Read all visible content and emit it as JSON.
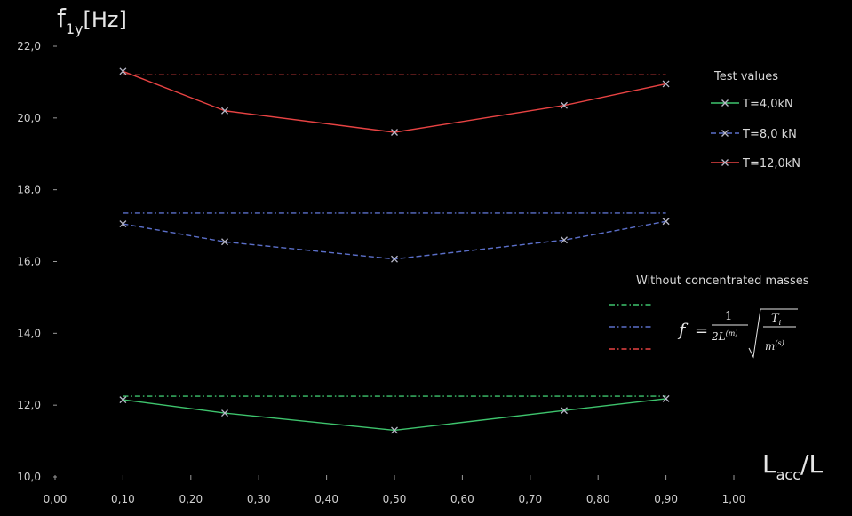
{
  "chart_data": {
    "type": "line",
    "ylabel_main": "f",
    "ylabel_sub": "1y",
    "ylabel_unit": "[Hz]",
    "xlabel_main": "L",
    "xlabel_sub": "acc",
    "xlabel_suffix": "/L",
    "xlim": [
      0,
      1
    ],
    "ylim": [
      10,
      22
    ],
    "xticks": [
      0,
      0.1,
      0.2,
      0.3,
      0.4,
      0.5,
      0.6,
      0.7,
      0.8,
      0.9,
      1.0
    ],
    "xtick_labels": [
      "0,00",
      "0,10",
      "0,20",
      "0,30",
      "0,40",
      "0,50",
      "0,60",
      "0,70",
      "0,80",
      "0,90",
      "1,00"
    ],
    "yticks": [
      10,
      12,
      14,
      16,
      18,
      20,
      22
    ],
    "ytick_labels": [
      "10,0",
      "12,0",
      "14,0",
      "16,0",
      "18,0",
      "20,0",
      "22,0"
    ],
    "series": [
      {
        "name": "T=4,0kN",
        "color": "#3ec46d",
        "x": [
          0.1,
          0.25,
          0.5,
          0.75,
          0.9
        ],
        "y": [
          12.15,
          11.78,
          11.3,
          11.85,
          12.18
        ]
      },
      {
        "name": "T=8,0 kN",
        "color": "#5b6fc9",
        "x": [
          0.1,
          0.25,
          0.5,
          0.75,
          0.9
        ],
        "y": [
          17.05,
          16.55,
          16.07,
          16.6,
          17.12
        ]
      },
      {
        "name": "T=12,0kN",
        "color": "#e84343",
        "x": [
          0.1,
          0.25,
          0.5,
          0.75,
          0.9
        ],
        "y": [
          21.3,
          20.2,
          19.6,
          20.35,
          20.95
        ]
      }
    ],
    "reference_lines": [
      {
        "color": "#3ec46d",
        "x": [
          0.1,
          0.9
        ],
        "y": 12.25
      },
      {
        "color": "#5b6fc9",
        "x": [
          0.1,
          0.9
        ],
        "y": 17.35
      },
      {
        "color": "#e84343",
        "x": [
          0.1,
          0.9
        ],
        "y": 21.2
      }
    ],
    "legend": {
      "test_title": "Test values",
      "reference_title": "Without concentrated masses"
    },
    "formula": {
      "lhs": "f",
      "eq": "=",
      "num": "1",
      "den_main": "2L",
      "den_sup": "(m)",
      "rad_num": "T",
      "rad_num_sub": "i",
      "rad_den_main": "m",
      "rad_den_sup": "(s)"
    }
  }
}
